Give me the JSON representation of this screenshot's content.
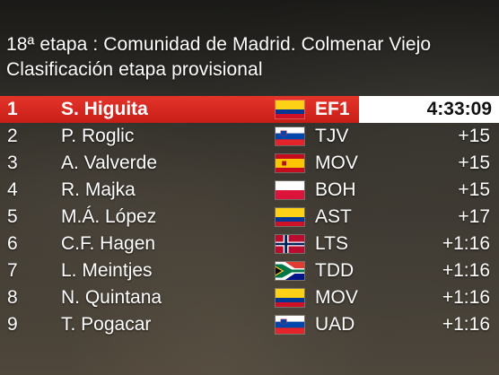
{
  "header": {
    "title": "18ª etapa : Comunidad de Madrid. Colmenar Viejo",
    "subtitle": "Clasificación etapa provisional"
  },
  "colors": {
    "leader_bar": "#d9281f",
    "time_box": "#ffffff",
    "text": "#ffffff"
  },
  "rows": [
    {
      "pos": "1",
      "name": "S. Higuita",
      "flag": "colombia-flag-icon",
      "team": "EF1",
      "time": "4:33:09"
    },
    {
      "pos": "2",
      "name": "P. Roglic",
      "flag": "slovenia-flag-icon",
      "team": "TJV",
      "time": "+15"
    },
    {
      "pos": "3",
      "name": "A. Valverde",
      "flag": "spain-flag-icon",
      "team": "MOV",
      "time": "+15"
    },
    {
      "pos": "4",
      "name": "R. Majka",
      "flag": "poland-flag-icon",
      "team": "BOH",
      "time": "+15"
    },
    {
      "pos": "5",
      "name": "M.Á. López",
      "flag": "colombia-flag-icon",
      "team": "AST",
      "time": "+17"
    },
    {
      "pos": "6",
      "name": "C.F. Hagen",
      "flag": "norway-flag-icon",
      "team": "LTS",
      "time": "+1:16"
    },
    {
      "pos": "7",
      "name": "L. Meintjes",
      "flag": "south-africa-flag-icon",
      "team": "TDD",
      "time": "+1:16"
    },
    {
      "pos": "8",
      "name": "N. Quintana",
      "flag": "colombia-flag-icon",
      "team": "MOV",
      "time": "+1:16"
    },
    {
      "pos": "9",
      "name": "T. Pogacar",
      "flag": "slovenia-flag-icon",
      "team": "UAD",
      "time": "+1:16"
    }
  ]
}
